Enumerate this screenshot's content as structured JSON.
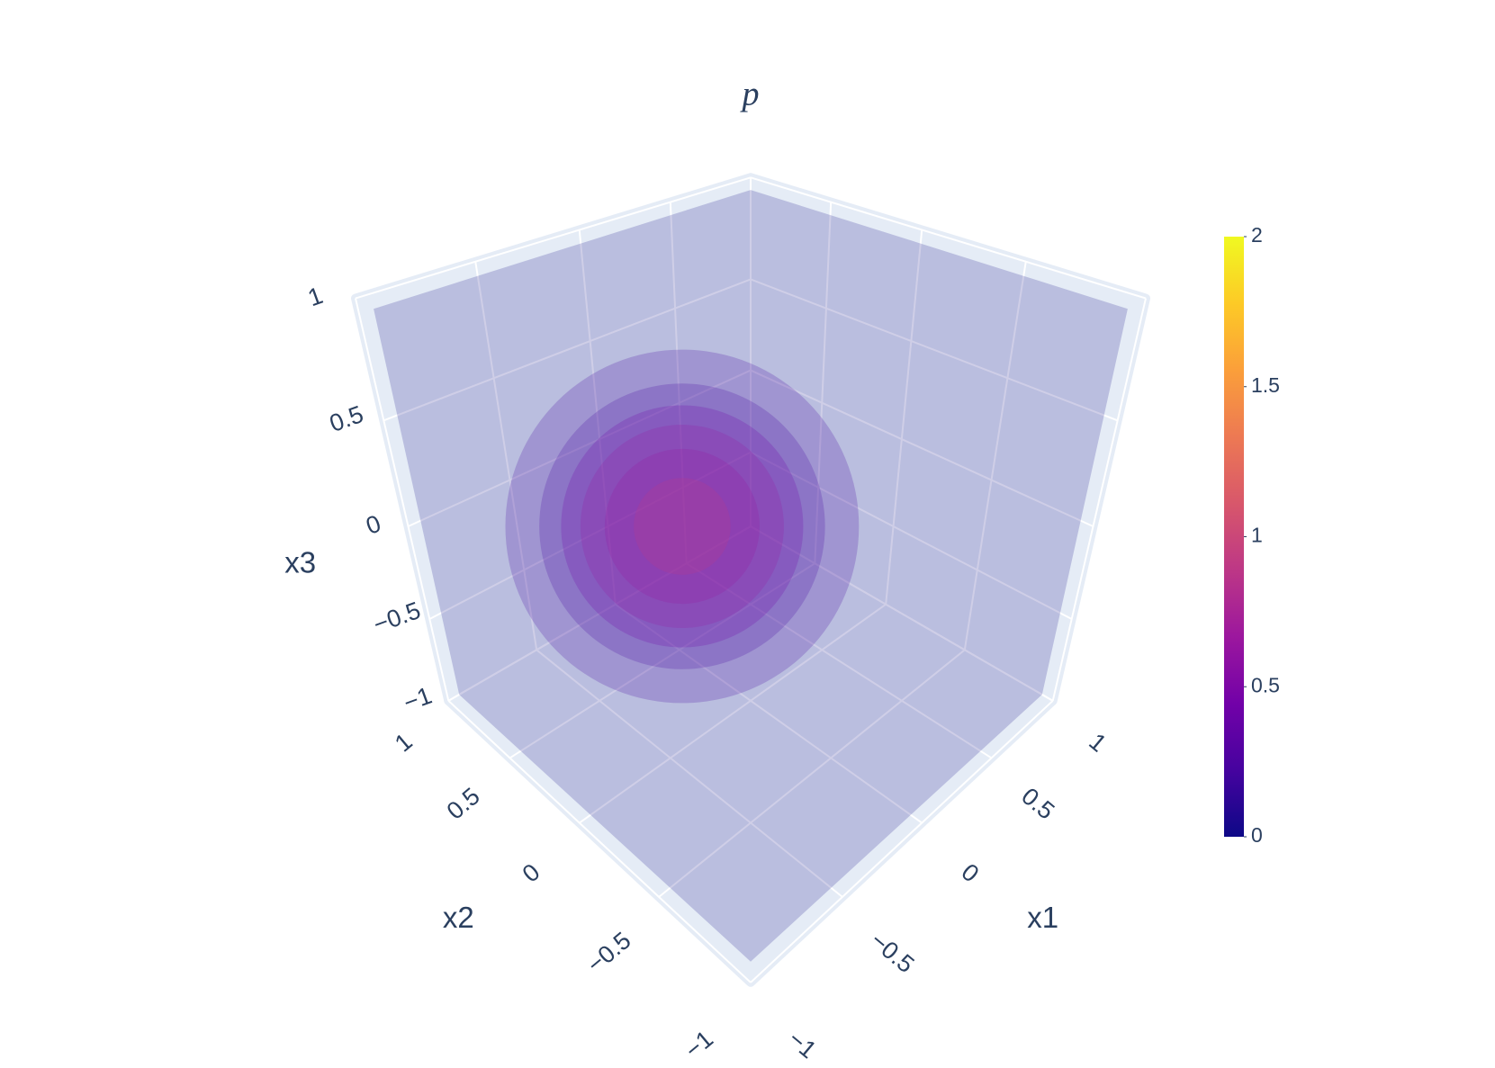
{
  "chart_data": {
    "type": "isosurface",
    "title": "p",
    "xlabel": "x1",
    "ylabel": "x2",
    "zlabel": "x3",
    "xlim": [
      -1,
      1
    ],
    "ylim": [
      -1,
      1
    ],
    "zlim": [
      -1,
      1
    ],
    "xticks": [
      {
        "value": -1,
        "label": "−1"
      },
      {
        "value": -0.5,
        "label": "−0.5"
      },
      0,
      0.5,
      1
    ],
    "yticks": [
      {
        "value": -1,
        "label": "−1"
      },
      {
        "value": -0.5,
        "label": "−0.5"
      },
      0,
      0.5,
      1
    ],
    "zticks": [
      {
        "value": -1,
        "label": "−1"
      },
      {
        "value": -0.5,
        "label": "−0.5"
      },
      0,
      0.5,
      1
    ],
    "clim": [
      0,
      2
    ],
    "cticks": [
      0,
      0.5,
      1,
      1.5,
      2
    ],
    "colorscale": [
      "#0d0887",
      "#46039f",
      "#7201a8",
      "#9c179e",
      "#bd3786",
      "#d8576b",
      "#ed7953",
      "#fb9f3a",
      "#fdca26",
      "#f0f921"
    ],
    "wall_color": "#e5ecf6",
    "grid": true,
    "center": [
      -0.2,
      0.2,
      0
    ],
    "surfaces": [
      {
        "value": 0.15,
        "radius": 0.73
      },
      {
        "value": 0.3,
        "radius": 0.59
      },
      {
        "value": 0.45,
        "radius": 0.5
      },
      {
        "value": 0.6,
        "radius": 0.42
      },
      {
        "value": 0.75,
        "radius": 0.32
      },
      {
        "value": 0.9,
        "radius": 0.2
      }
    ]
  }
}
